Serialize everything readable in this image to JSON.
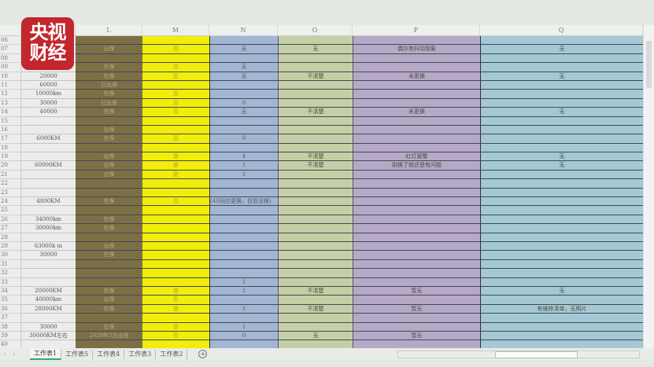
{
  "logo": {
    "line1": "央视",
    "line2": "财经",
    "color": "#c1272d"
  },
  "columns": [
    "",
    "",
    "L",
    "M",
    "N",
    "O",
    "P",
    "Q"
  ],
  "column_colors": {
    "K": "#ececec",
    "L": "#7d6f45",
    "M": "#f0ee0a",
    "N": "#a3b7d4",
    "O": "#c5cfa5",
    "P": "#b6a9c8",
    "Q": "#a4c9d4"
  },
  "rows": [
    [
      "06",
      "",
      "",
      "",
      "",
      "",
      "",
      ""
    ],
    [
      "07",
      "",
      "出保",
      "否",
      "无",
      "无",
      "偶尔有抖动现象",
      "无"
    ],
    [
      "08",
      "",
      "",
      "",
      "",
      "",
      "",
      ""
    ],
    [
      "09",
      "",
      "在保",
      "否",
      "无",
      "",
      "",
      ""
    ],
    [
      "10",
      "20000",
      "在保",
      "否",
      "无",
      "不清楚",
      "未更换",
      "无"
    ],
    [
      "11",
      "60000",
      "已出保",
      "",
      "",
      "",
      "",
      ""
    ],
    [
      "12",
      "10000km",
      "在保",
      "否",
      "",
      "",
      "",
      ""
    ],
    [
      "13",
      "30000",
      "已出保",
      "否",
      "0",
      "",
      "",
      ""
    ],
    [
      "14",
      "40000",
      "在保",
      "否",
      "无",
      "不清楚",
      "未更换",
      "无"
    ],
    [
      "15",
      "",
      "",
      "",
      "",
      "",
      "",
      ""
    ],
    [
      "16",
      "",
      "出保",
      "",
      "",
      "",
      "",
      ""
    ],
    [
      "17",
      "6000KM",
      "在保",
      "否",
      "0",
      "",
      "",
      ""
    ],
    [
      "18",
      "",
      "",
      "",
      "",
      "",
      "",
      ""
    ],
    [
      "19",
      "",
      "出保",
      "是",
      "4",
      "不清楚",
      "红灯报警",
      "无"
    ],
    [
      "20",
      "60000KM",
      "出保",
      "是",
      "1",
      "不清楚",
      "刚换了就还是有问题",
      "无"
    ],
    [
      "21",
      "",
      "出保",
      "是",
      "1",
      "",
      "",
      ""
    ],
    [
      "22",
      "",
      "",
      "",
      "",
      "",
      "",
      ""
    ],
    [
      "23",
      "",
      "",
      "",
      "",
      "",
      "",
      ""
    ],
    [
      "24",
      "4800KM",
      "在保",
      "否",
      "(4S回应更换，目前没换)",
      "",
      "",
      ""
    ],
    [
      "25",
      "",
      "",
      "",
      "",
      "",
      "",
      ""
    ],
    [
      "26",
      "34000km",
      "在保",
      "",
      "",
      "",
      "",
      ""
    ],
    [
      "27",
      "30000km",
      "在保",
      "",
      "",
      "",
      "",
      ""
    ],
    [
      "28",
      "",
      "",
      "",
      "",
      "",
      "",
      ""
    ],
    [
      "29",
      "63000k m",
      "出保",
      "",
      "",
      "",
      "",
      ""
    ],
    [
      "30",
      "30000",
      "在保",
      "",
      "",
      "",
      "",
      ""
    ],
    [
      "31",
      "",
      "",
      "",
      "",
      "",
      "",
      ""
    ],
    [
      "32",
      "",
      "",
      "",
      "",
      "",
      "",
      ""
    ],
    [
      "33",
      "",
      "",
      "",
      "1",
      "",
      "",
      ""
    ],
    [
      "34",
      "20000KM",
      "在保",
      "是",
      "1",
      "不清楚",
      "暂无",
      "无"
    ],
    [
      "35",
      "40000km",
      "出保",
      "否",
      "",
      "",
      "",
      ""
    ],
    [
      "36",
      "28000KM",
      "在保",
      "是",
      "1",
      "不清楚",
      "暂无",
      "有维修清单，无照片"
    ],
    [
      "37",
      "",
      "",
      "",
      "",
      "",
      "",
      ""
    ],
    [
      "38",
      "30000",
      "在保",
      "是",
      "1",
      "",
      "",
      ""
    ],
    [
      "39",
      "30000KM左右",
      "2020年3月出保",
      "否",
      "0",
      "无",
      "暂无",
      ""
    ],
    [
      "40",
      "",
      "",
      "",
      "",
      "",
      "",
      ""
    ]
  ],
  "sheet_tabs": [
    "工作表1",
    "工作表5",
    "工作表4",
    "工作表3",
    "工作表2"
  ],
  "active_tab": "工作表1",
  "icons": {
    "add_sheet": "plus-circle-icon",
    "prev": "chevron-left-icon",
    "next": "chevron-right-icon"
  }
}
